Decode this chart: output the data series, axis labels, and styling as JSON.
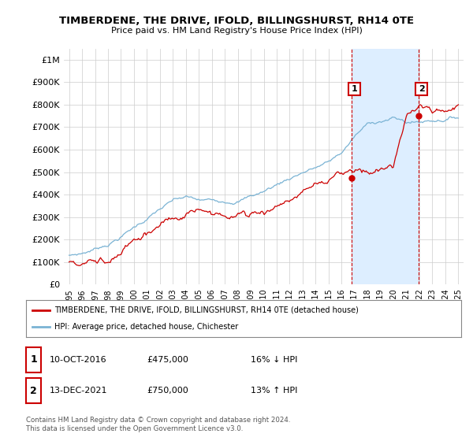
{
  "title": "TIMBERDENE, THE DRIVE, IFOLD, BILLINGSHURST, RH14 0TE",
  "subtitle": "Price paid vs. HM Land Registry's House Price Index (HPI)",
  "ylim": [
    0,
    1050000
  ],
  "yticks": [
    0,
    100000,
    200000,
    300000,
    400000,
    500000,
    600000,
    700000,
    800000,
    900000,
    1000000
  ],
  "ytick_labels": [
    "£0",
    "£100K",
    "£200K",
    "£300K",
    "£400K",
    "£500K",
    "£600K",
    "£700K",
    "£800K",
    "£900K",
    "£1M"
  ],
  "hpi_color": "#7ab3d4",
  "price_color": "#cc0000",
  "vline_color": "#cc0000",
  "shade_color": "#ddeeff",
  "annotation1": [
    "1",
    "10-OCT-2016",
    "£475,000",
    "16% ↓ HPI"
  ],
  "annotation2": [
    "2",
    "13-DEC-2021",
    "£750,000",
    "13% ↑ HPI"
  ],
  "legend_label1": "TIMBERDENE, THE DRIVE, IFOLD, BILLINGSHURST, RH14 0TE (detached house)",
  "legend_label2": "HPI: Average price, detached house, Chichester",
  "footer": "Contains HM Land Registry data © Crown copyright and database right 2024.\nThis data is licensed under the Open Government Licence v3.0.",
  "background_color": "#ffffff",
  "grid_color": "#cccccc",
  "sale1_year": 2016.79,
  "sale1_price": 475000,
  "sale2_year": 2021.96,
  "sale2_price": 750000
}
